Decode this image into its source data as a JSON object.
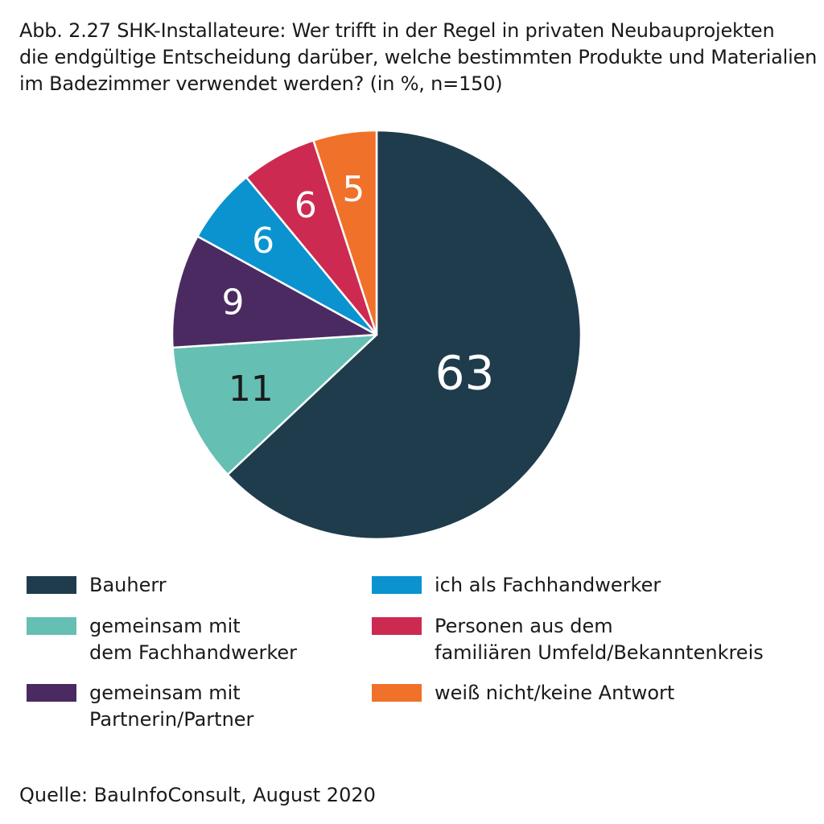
{
  "title_lines": [
    "Abb. 2.27 SHK-Installateure: Wer trifft in der Regel in privaten Neubauprojekten",
    "die endgültige Entscheidung darüber, welche bestimmten Produkte und Materialien",
    "im Badezimmer verwendet werden? (in %, n=150)"
  ],
  "source": "Quelle: BauInfoConsult, August 2020",
  "chart_data": {
    "type": "pie",
    "title": "Abb. 2.27 SHK-Installateure: Wer trifft in der Regel in privaten Neubauprojekten die endgültige Entscheidung darüber, welche bestimmten Produkte und Materialien im Badezimmer verwendet werden? (in %, n=150)",
    "unit": "%",
    "start": "12 o'clock, clockwise",
    "slices": [
      {
        "label": "Bauherr",
        "value": 63,
        "value_label": "63",
        "color": "#1f3c4d",
        "text_color": "#ffffff"
      },
      {
        "label": "gemeinsam mit dem Fachhandwerker",
        "value": 11,
        "value_label": "11",
        "color": "#65bfb3",
        "text_color": "#1a1a1a"
      },
      {
        "label": "gemeinsam mit Partnerin/Partner",
        "value": 9,
        "value_label": "9",
        "color": "#4b2a62",
        "text_color": "#ffffff"
      },
      {
        "label": "ich als Fachhandwerker",
        "value": 6,
        "value_label": "6",
        "color": "#0a93cf",
        "text_color": "#ffffff"
      },
      {
        "label": "Personen aus dem familiären Umfeld/Bekanntenkreis",
        "value": 6,
        "value_label": "6",
        "color": "#cd2a51",
        "text_color": "#ffffff"
      },
      {
        "label": "weiß nicht/keine Antwort",
        "value": 5,
        "value_label": "5",
        "color": "#f0712a",
        "text_color": "#ffffff"
      }
    ]
  },
  "legend": {
    "placement": "bottom, two columns",
    "items": [
      {
        "lines": [
          "Bauherr"
        ],
        "color": "#1f3c4d"
      },
      {
        "lines": [
          "gemeinsam mit",
          "dem Fachhandwerker"
        ],
        "color": "#65bfb3"
      },
      {
        "lines": [
          "gemeinsam mit",
          "Partnerin/Partner"
        ],
        "color": "#4b2a62"
      },
      {
        "lines": [
          "ich als Fachhandwerker"
        ],
        "color": "#0a93cf"
      },
      {
        "lines": [
          "Personen aus dem",
          "familiären Umfeld/Bekanntenkreis"
        ],
        "color": "#cd2a51"
      },
      {
        "lines": [
          "weiß nicht/keine Antwort"
        ],
        "color": "#f0712a"
      }
    ]
  }
}
